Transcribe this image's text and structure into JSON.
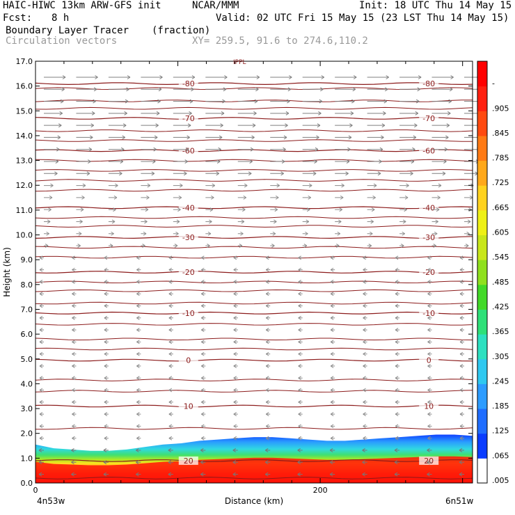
{
  "header": {
    "title": "HAIC-HIWC 13km ARW-GFS init",
    "org": "NCAR/MMM",
    "init": "Init: 18 UTC Thu 14 May 15",
    "fcst_label": "Fcst:",
    "fcst_value": "8 h",
    "valid": "Valid: 02 UTC Fri 15 May 15 (23 LST Thu 14 May 15)",
    "field_name": "Boundary Layer Tracer",
    "field_units": "(fraction)",
    "vectors_label": "Circulation vectors",
    "xy_range": "XY= 259.5, 91.6 to 274.6,110.2"
  },
  "chart_data": {
    "type": "heatmap",
    "ylabel": "Height (km)",
    "xlabel": "Distance (km)",
    "ylim": [
      0,
      17
    ],
    "xlim": [
      0,
      307
    ],
    "y_ticks": [
      "0.0",
      "1.0",
      "2.0",
      "3.0",
      "4.0",
      "5.0",
      "6.0",
      "7.0",
      "8.0",
      "9.0",
      "10.0",
      "11.0",
      "12.0",
      "13.0",
      "14.0",
      "15.0",
      "16.0",
      "17.0"
    ],
    "x_ticks": [
      {
        "value": 0,
        "label": "0"
      },
      {
        "value": 200,
        "label": "200"
      }
    ],
    "x_endpoints": {
      "left": "4n53w",
      "right": "6n51w"
    },
    "top_label": "IPPL",
    "colorbar": {
      "labels": [
        ".005",
        ".065",
        ".125",
        ".185",
        ".245",
        ".305",
        ".365",
        ".425",
        ".485",
        ".545",
        ".605",
        ".665",
        ".725",
        ".785",
        ".845",
        ".905",
        "-"
      ],
      "colors": [
        "#ffffff",
        "#0a3cff",
        "#1f6dff",
        "#2d9cff",
        "#2fc8f0",
        "#2de0c0",
        "#2ee078",
        "#42d928",
        "#8fe01e",
        "#c8e61a",
        "#eef015",
        "#ffd21e",
        "#ffa81a",
        "#ff7a14",
        "#ff4a10",
        "#ff2010",
        "#ff0000"
      ]
    },
    "tracer_top_km": [
      1.55,
      1.4,
      1.35,
      1.3,
      1.3,
      1.35,
      1.45,
      1.55,
      1.6,
      1.7,
      1.75,
      1.8,
      1.85,
      1.85,
      1.8,
      1.75,
      1.7,
      1.7,
      1.75,
      1.8,
      1.85,
      1.9,
      1.95,
      1.95,
      1.9
    ],
    "isotherms": [
      {
        "value": "20",
        "km": 0.9
      },
      {
        "value": "10",
        "km": 3.1
      },
      {
        "value": "0",
        "km": 4.95
      },
      {
        "value": "-10",
        "km": 6.85
      },
      {
        "value": "-20",
        "km": 8.5
      },
      {
        "value": "-30",
        "km": 9.9
      },
      {
        "value": "-40",
        "km": 11.1
      },
      {
        "value": "-60",
        "km": 13.4
      },
      {
        "value": "-70",
        "km": 14.7
      },
      {
        "value": "-80",
        "km": 16.1
      }
    ],
    "extra_isotherm_km": [
      0.2,
      2.2,
      3.7,
      4.15,
      5.4,
      5.8,
      6.4,
      7.25,
      7.75,
      8.1,
      9.1,
      9.5,
      10.35,
      10.7,
      11.8,
      12.2,
      12.6,
      13.0,
      13.8,
      14.2,
      15.1,
      15.4,
      15.9
    ]
  }
}
